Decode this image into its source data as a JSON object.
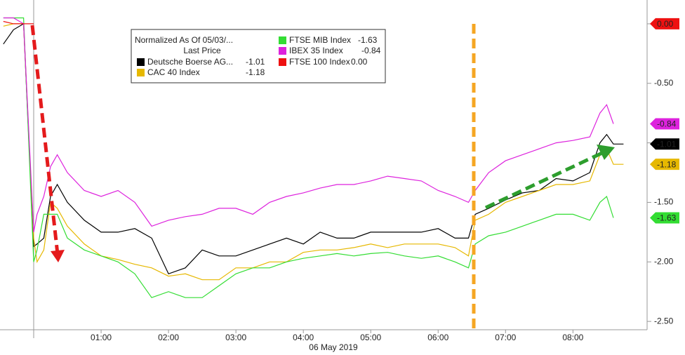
{
  "chart_data": {
    "type": "line",
    "legend_title": "Normalized As Of 05/03/...",
    "legend_subtitle": "Last Price",
    "xlabel": "06 May 2019",
    "xlim": [
      -0.5,
      9.1
    ],
    "xticks": [
      {
        "value": 1,
        "label": "01:00"
      },
      {
        "value": 2,
        "label": "02:00"
      },
      {
        "value": 3,
        "label": "03:00"
      },
      {
        "value": 4,
        "label": "04:00"
      },
      {
        "value": 5,
        "label": "05:00"
      },
      {
        "value": 6,
        "label": "06:00"
      },
      {
        "value": 7,
        "label": "07:00"
      },
      {
        "value": 8,
        "label": "08:00"
      }
    ],
    "ylim": [
      -2.57,
      0.2
    ],
    "yticks": [
      {
        "value": 0,
        "label": "0.00"
      },
      {
        "value": -0.5,
        "label": "-0.50"
      },
      {
        "value": -1,
        "label": "-1.00"
      },
      {
        "value": -1.5,
        "label": "-1.50"
      },
      {
        "value": -2,
        "label": "-2.00"
      },
      {
        "value": -2.5,
        "label": "-2.50"
      }
    ],
    "x": [
      -0.45,
      -0.3,
      -0.15,
      0,
      0.05,
      0.15,
      0.25,
      0.35,
      0.5,
      0.75,
      1,
      1.25,
      1.5,
      1.75,
      2,
      2.25,
      2.5,
      2.75,
      3,
      3.25,
      3.5,
      3.75,
      4,
      4.25,
      4.5,
      4.75,
      5,
      5.25,
      5.5,
      5.75,
      6,
      6.25,
      6.45,
      6.55,
      6.75,
      7,
      7.25,
      7.5,
      7.75,
      8,
      8.25,
      8.4,
      8.5,
      8.6,
      8.75
    ],
    "series": [
      {
        "name": "Deutsche Boerse AG...",
        "color": "#000000",
        "text_color": "#ffffff",
        "last": -1.01,
        "last_label": "-1.01",
        "values": [
          -0.17,
          -0.05,
          0,
          -1.87,
          -1.85,
          -1.8,
          -1.45,
          -1.35,
          -1.5,
          -1.65,
          -1.75,
          -1.75,
          -1.72,
          -1.8,
          -2.1,
          -2.05,
          -1.9,
          -1.95,
          -1.95,
          -1.9,
          -1.85,
          -1.8,
          -1.85,
          -1.75,
          -1.8,
          -1.8,
          -1.75,
          -1.75,
          -1.75,
          -1.75,
          -1.72,
          -1.8,
          -1.8,
          -1.6,
          -1.55,
          -1.48,
          -1.42,
          -1.4,
          -1.3,
          -1.32,
          -1.25,
          -1.0,
          -0.93,
          -1.01,
          -1.01
        ]
      },
      {
        "name": "CAC 40 Index",
        "color": "#e6b800",
        "text_color": "#000000",
        "last": -1.18,
        "last_label": "-1.18",
        "values": [
          -0.02,
          0,
          0,
          -1.8,
          -2.0,
          -1.9,
          -1.5,
          -1.55,
          -1.7,
          -1.85,
          -1.95,
          -1.98,
          -2.02,
          -2.05,
          -2.12,
          -2.1,
          -2.15,
          -2.15,
          -2.05,
          -2.05,
          -2.0,
          -2.0,
          -1.92,
          -1.9,
          -1.9,
          -1.88,
          -1.85,
          -1.88,
          -1.85,
          -1.85,
          -1.85,
          -1.88,
          -1.95,
          -1.65,
          -1.6,
          -1.5,
          -1.45,
          -1.4,
          -1.35,
          -1.35,
          -1.32,
          -1.1,
          -1.05,
          -1.18,
          -1.18
        ]
      },
      {
        "name": "FTSE MIB Index",
        "color": "#33dd33",
        "text_color": "#000000",
        "last": -1.63,
        "last_label": "-1.63",
        "values": [
          0.05,
          0.05,
          0.05,
          -2.0,
          -1.9,
          -1.6,
          -1.6,
          -1.6,
          -1.8,
          -1.9,
          -1.95,
          -2.0,
          -2.1,
          -2.3,
          -2.25,
          -2.3,
          -2.3,
          -2.2,
          -2.1,
          -2.05,
          -2.05,
          -2.0,
          -1.97,
          -1.95,
          -1.93,
          -1.95,
          -1.93,
          -1.92,
          -1.95,
          -1.97,
          -1.95,
          -2.0,
          -2.05,
          -1.85,
          -1.78,
          -1.75,
          -1.7,
          -1.65,
          -1.6,
          -1.6,
          -1.65,
          -1.5,
          -1.45,
          -1.63,
          null
        ]
      },
      {
        "name": "IBEX 35 Index",
        "color": "#dd22dd",
        "text_color": "#ffffff",
        "last": -0.84,
        "last_label": "-0.84",
        "values": [
          0.05,
          0.05,
          0,
          -1.75,
          -1.6,
          -1.45,
          -1.2,
          -1.1,
          -1.25,
          -1.4,
          -1.45,
          -1.4,
          -1.5,
          -1.7,
          -1.65,
          -1.62,
          -1.6,
          -1.55,
          -1.55,
          -1.6,
          -1.5,
          -1.45,
          -1.42,
          -1.38,
          -1.35,
          -1.35,
          -1.32,
          -1.28,
          -1.3,
          -1.32,
          -1.4,
          -1.45,
          -1.5,
          -1.4,
          -1.25,
          -1.15,
          -1.1,
          -1.05,
          -1.0,
          -0.98,
          -0.95,
          -0.75,
          -0.68,
          -0.84,
          null
        ]
      },
      {
        "name": "FTSE 100 Index",
        "color": "#ee1111",
        "text_color": "#ffffff",
        "last": 0,
        "last_label": "0.00",
        "values": [
          0.02,
          0,
          0,
          0,
          null,
          null,
          null,
          null,
          null,
          null,
          null,
          null,
          null,
          null,
          null,
          null,
          null,
          null,
          null,
          null,
          null,
          null,
          null,
          null,
          null,
          null,
          null,
          null,
          null,
          null,
          null,
          null,
          null,
          null,
          null,
          null,
          null,
          null,
          null,
          null,
          null,
          null,
          null,
          null,
          null
        ]
      }
    ]
  }
}
